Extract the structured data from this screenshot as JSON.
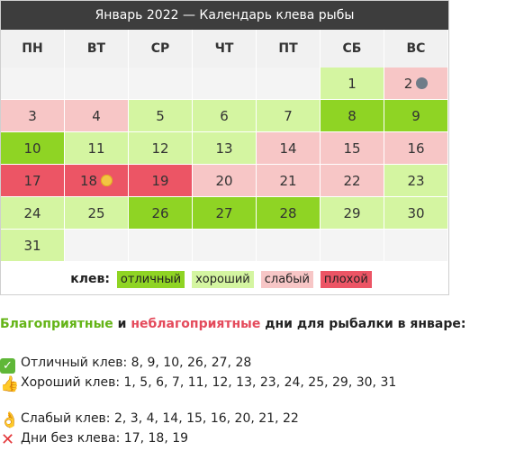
{
  "calendar": {
    "title": "Январь 2022 — Календарь клева рыбы",
    "weekdays": [
      "ПН",
      "ВТ",
      "СР",
      "ЧТ",
      "ПТ",
      "СБ",
      "ВС"
    ],
    "weeks": [
      [
        {
          "d": "",
          "q": "empty"
        },
        {
          "d": "",
          "q": "empty"
        },
        {
          "d": "",
          "q": "empty"
        },
        {
          "d": "",
          "q": "empty"
        },
        {
          "d": "",
          "q": "empty"
        },
        {
          "d": "1",
          "q": "good"
        },
        {
          "d": "2",
          "q": "weak",
          "moon": "new"
        }
      ],
      [
        {
          "d": "3",
          "q": "weak"
        },
        {
          "d": "4",
          "q": "weak"
        },
        {
          "d": "5",
          "q": "good"
        },
        {
          "d": "6",
          "q": "good"
        },
        {
          "d": "7",
          "q": "good"
        },
        {
          "d": "8",
          "q": "excellent"
        },
        {
          "d": "9",
          "q": "excellent"
        }
      ],
      [
        {
          "d": "10",
          "q": "excellent"
        },
        {
          "d": "11",
          "q": "good"
        },
        {
          "d": "12",
          "q": "good"
        },
        {
          "d": "13",
          "q": "good"
        },
        {
          "d": "14",
          "q": "weak"
        },
        {
          "d": "15",
          "q": "weak"
        },
        {
          "d": "16",
          "q": "weak"
        }
      ],
      [
        {
          "d": "17",
          "q": "bad"
        },
        {
          "d": "18",
          "q": "bad",
          "moon": "full"
        },
        {
          "d": "19",
          "q": "bad"
        },
        {
          "d": "20",
          "q": "weak"
        },
        {
          "d": "21",
          "q": "weak"
        },
        {
          "d": "22",
          "q": "weak"
        },
        {
          "d": "23",
          "q": "good"
        }
      ],
      [
        {
          "d": "24",
          "q": "good"
        },
        {
          "d": "25",
          "q": "good"
        },
        {
          "d": "26",
          "q": "excellent"
        },
        {
          "d": "27",
          "q": "excellent"
        },
        {
          "d": "28",
          "q": "excellent"
        },
        {
          "d": "29",
          "q": "good"
        },
        {
          "d": "30",
          "q": "good"
        }
      ],
      [
        {
          "d": "31",
          "q": "good"
        },
        {
          "d": "",
          "q": "empty"
        },
        {
          "d": "",
          "q": "empty"
        },
        {
          "d": "",
          "q": "empty"
        },
        {
          "d": "",
          "q": "empty"
        },
        {
          "d": "",
          "q": "empty"
        },
        {
          "d": "",
          "q": "empty"
        }
      ]
    ],
    "legend": {
      "label": "клев:",
      "excellent": "отличный",
      "good": "хороший",
      "weak": "слабый",
      "bad": "плохой"
    },
    "colors": {
      "excellent": "#8fd424",
      "good": "#d4f5a1",
      "weak": "#f7c6c6",
      "bad": "#ec5565"
    }
  },
  "summary": {
    "favorable": "Благоприятные",
    "and": " и ",
    "unfavorable": "неблагоприятные",
    "rest": " дни для рыбалки в январе:",
    "excellent_line": "Отличный клев: 8, 9, 10, 26, 27, 28",
    "good_line": "Хороший клев: 1, 5, 6, 7, 11, 12, 13, 23, 24, 25, 29, 30, 31",
    "weak_line": "Слабый клев: 2, 3, 4, 14, 15, 16, 20, 21, 22",
    "bad_line": "Дни без клева: 17, 18, 19",
    "icons": [
      "check-mark-icon",
      "thumbs-up-icon",
      "ok-hand-icon",
      "cross-mark-icon"
    ]
  }
}
